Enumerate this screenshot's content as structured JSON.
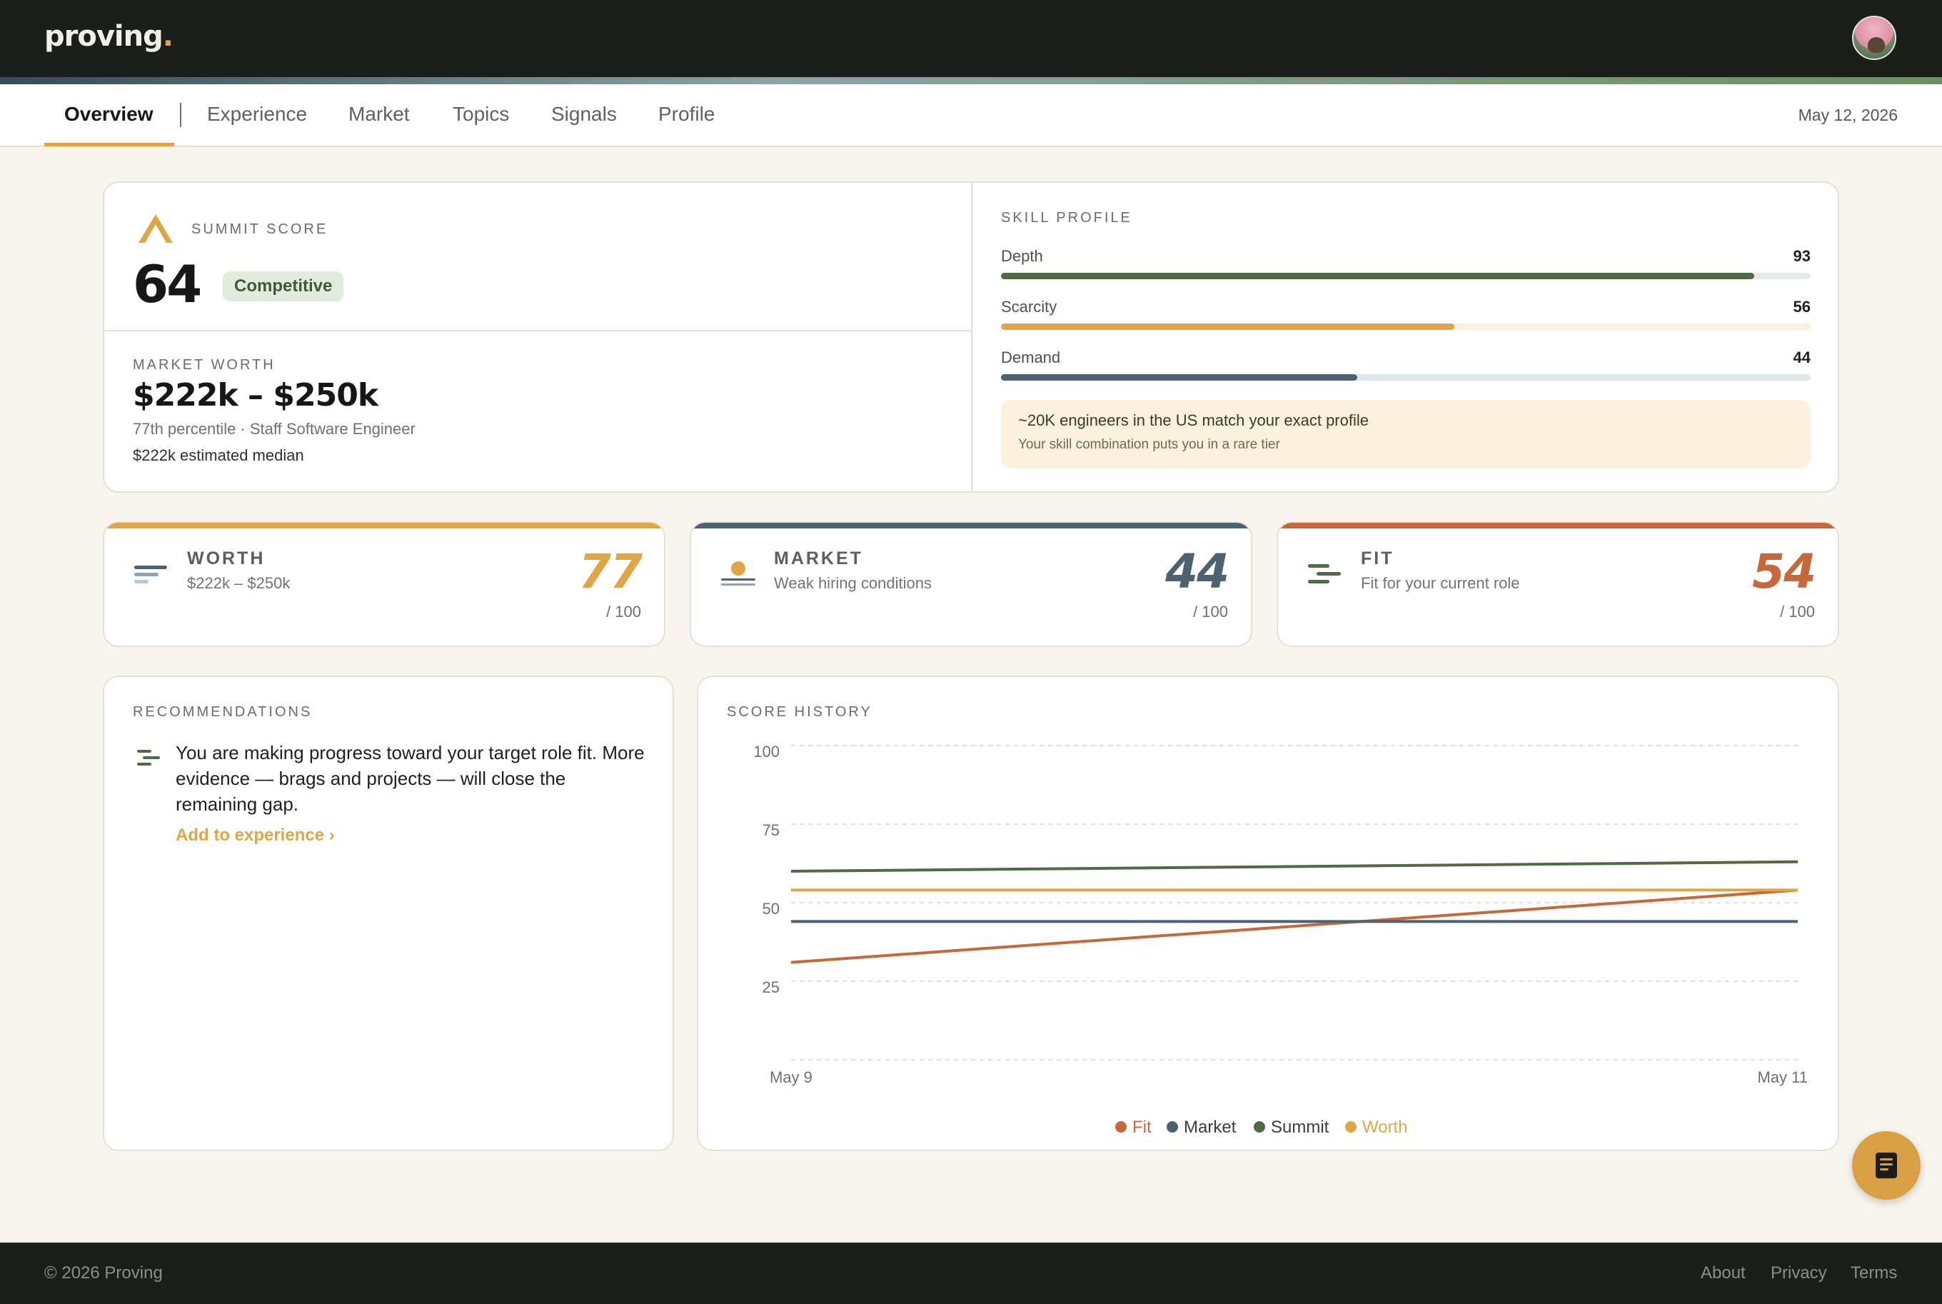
{
  "app": {
    "logo_text": "proving",
    "logo_dot": "."
  },
  "nav": {
    "tabs": [
      "Overview",
      "Experience",
      "Market",
      "Topics",
      "Signals",
      "Profile"
    ],
    "active_tab": "Overview",
    "date": "May 12, 2026"
  },
  "summary": {
    "summit_label": "SUMMIT SCORE",
    "summit_score": "64",
    "summit_badge": "Competitive",
    "worth_label": "MARKET WORTH",
    "worth_range": "$222k – $250k",
    "worth_percentile": "77th percentile · Staff Software Engineer",
    "worth_median": "$222k estimated median",
    "skill_title": "SKILL PROFILE",
    "skills": [
      {
        "name": "Depth",
        "value": 93,
        "color": "#4f6a45",
        "track": "#e6ebe1"
      },
      {
        "name": "Scarcity",
        "value": 56,
        "color": "#e0a544",
        "track": "#fbf0dc"
      },
      {
        "name": "Demand",
        "value": 44,
        "color": "#4d6271",
        "track": "#dfe7ea"
      }
    ],
    "note_title": "~20K engineers in the US match your exact profile",
    "note_sub": "Your skill combination puts you in a rare tier"
  },
  "metrics": [
    {
      "name": "WORTH",
      "subtitle": "$222k – $250k",
      "score": "77",
      "out_of": "/ 100",
      "color": "#e0a544",
      "icon": "bars-icon"
    },
    {
      "name": "MARKET",
      "subtitle": "Weak hiring conditions",
      "score": "44",
      "out_of": "/ 100",
      "color": "#4d6271",
      "icon": "sunset-icon"
    },
    {
      "name": "FIT",
      "subtitle": "Fit for your current role",
      "score": "54",
      "out_of": "/ 100",
      "color": "#c8683a",
      "icon": "fit-lines-icon"
    }
  ],
  "recommendations": {
    "title": "RECOMMENDATIONS",
    "text": "You are making progress toward your target role fit. More evidence — brags and projects — will close the remaining gap.",
    "link": "Add to experience ›"
  },
  "chart_data": {
    "type": "line",
    "title": "SCORE HISTORY",
    "x": [
      "May 9",
      "May 11"
    ],
    "y_ticks": [
      100,
      75,
      50,
      25
    ],
    "ylim": [
      0,
      100
    ],
    "grid": true,
    "legend_position": "bottom",
    "series": [
      {
        "name": "Fit",
        "color": "#c8683a",
        "values": [
          31,
          54
        ]
      },
      {
        "name": "Market",
        "color": "#4d6271",
        "values": [
          44,
          44
        ]
      },
      {
        "name": "Summit",
        "color": "#4f6a45",
        "values": [
          60,
          63
        ]
      },
      {
        "name": "Worth",
        "color": "#e0a544",
        "values": [
          54,
          54
        ]
      }
    ]
  },
  "footer": {
    "copyright": "© 2026 Proving",
    "links": [
      "About",
      "Privacy",
      "Terms"
    ]
  }
}
